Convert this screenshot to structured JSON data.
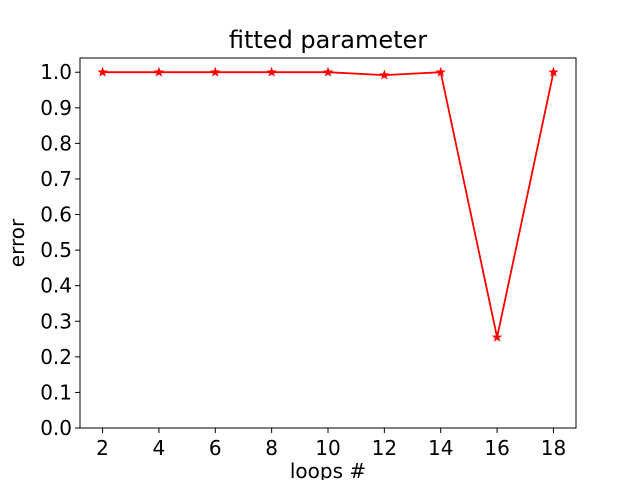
{
  "chart_data": {
    "type": "line",
    "title": "fitted parameter",
    "xlabel": "loops #",
    "ylabel": "error",
    "x": [
      2,
      4,
      6,
      8,
      10,
      12,
      14,
      16,
      18
    ],
    "series": [
      {
        "values": [
          1.0,
          1.0,
          1.0,
          1.0,
          1.0,
          0.992,
          1.0,
          0.255,
          1.0
        ],
        "color": "#ff0000",
        "marker": "star"
      }
    ],
    "xticks": [
      "2",
      "4",
      "6",
      "8",
      "10",
      "12",
      "14",
      "16",
      "18"
    ],
    "yticks": [
      "0.0",
      "0.1",
      "0.2",
      "0.3",
      "0.4",
      "0.5",
      "0.6",
      "0.7",
      "0.8",
      "0.9",
      "1.0"
    ],
    "xlim": [
      1.2,
      18.8
    ],
    "ylim": [
      0.0,
      1.04
    ],
    "grid": false
  }
}
